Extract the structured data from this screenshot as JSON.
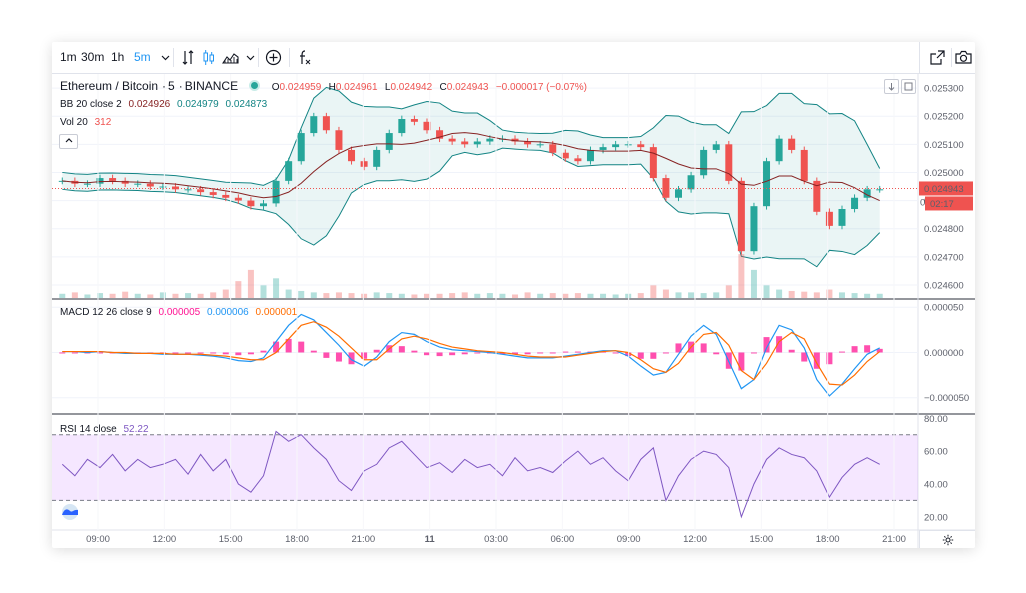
{
  "toolbar": {
    "intervals": [
      "1m",
      "30m",
      "1h",
      "5m"
    ],
    "active_interval": "5m",
    "icons": [
      "chevron-down-icon",
      "compare-icon",
      "candles-icon",
      "area-chart-icon",
      "chevron-down-icon",
      "add-circle-icon",
      "indicators-fx-icon"
    ],
    "right_icons": [
      "popout-icon",
      "camera-icon"
    ]
  },
  "symbol": {
    "name": "Ethereum / Bitcoin",
    "interval": "5",
    "exchange": "BINANCE",
    "open_label": "O",
    "open": "0.024959",
    "high_label": "H",
    "high": "0.024961",
    "low_label": "L",
    "low": "0.024942",
    "close_label": "C",
    "close": "0.024943",
    "change": "−0.000017 (−0.07%)"
  },
  "indicators": {
    "bb_label": "BB 20 close 2",
    "bb_values": [
      "0.024926",
      "0.024979",
      "0.024873"
    ],
    "vol_label": "Vol 20",
    "vol_value": "312",
    "macd_label": "MACD 12 26 close 9",
    "macd_values": [
      "0.000005",
      "0.000006",
      "0.000001"
    ],
    "rsi_label": "RSI 14 close",
    "rsi_value": "52.22"
  },
  "price_axis": {
    "ticks": [
      "0.025300",
      "0.025200",
      "0.025100",
      "0.025000",
      "0.024900",
      "0.024800",
      "0.024700",
      "0.024600"
    ],
    "current_price": "0.024943",
    "countdown": "02:17",
    "partial_tick": "0."
  },
  "macd_axis": {
    "ticks": [
      "0.000050",
      "0.000000",
      "−0.000050"
    ]
  },
  "rsi_axis": {
    "ticks": [
      "80.00",
      "60.00",
      "40.00",
      "20.00"
    ]
  },
  "time_axis": {
    "labels": [
      "09:00",
      "12:00",
      "15:00",
      "18:00",
      "21:00",
      "11",
      "03:00",
      "06:00",
      "09:00",
      "12:00",
      "15:00",
      "18:00",
      "21:00"
    ]
  },
  "colors": {
    "up": "#26a69a",
    "down": "#ef5350",
    "bb_basis": "#872323",
    "bb_band": "#138484",
    "bb_fill": "#198c8c",
    "macd_line": "#2196f3",
    "signal_line": "#ff6d00",
    "hist": "#ff1493",
    "rsi_line": "#7e57c2",
    "rsi_band": "#9915ff",
    "current_price": "#ef5350"
  },
  "chart_data": {
    "type": "candlestick",
    "series": [
      {
        "name": "ETHBTC (price)",
        "values": [
          0.02497,
          0.02496,
          0.02496,
          0.02498,
          0.02497,
          0.02496,
          0.02496,
          0.02495,
          0.02495,
          0.02494,
          0.02494,
          0.02493,
          0.02492,
          0.02491,
          0.0249,
          0.02488,
          0.02489,
          0.02497,
          0.02504,
          0.02514,
          0.0252,
          0.02515,
          0.02508,
          0.02504,
          0.02502,
          0.02508,
          0.02514,
          0.02519,
          0.02518,
          0.02515,
          0.02512,
          0.02511,
          0.0251,
          0.02511,
          0.02512,
          0.02512,
          0.02511,
          0.0251,
          0.0251,
          0.02507,
          0.02505,
          0.02504,
          0.02508,
          0.02509,
          0.0251,
          0.0251,
          0.02509,
          0.02498,
          0.02491,
          0.02494,
          0.02499,
          0.02508,
          0.0251,
          0.02497,
          0.02472,
          0.02488,
          0.02504,
          0.02512,
          0.02508,
          0.02497,
          0.02486,
          0.02481,
          0.02487,
          0.02491,
          0.02494,
          0.02494
        ]
      },
      {
        "name": "Volume",
        "values": [
          30,
          40,
          25,
          35,
          30,
          45,
          30,
          25,
          40,
          30,
          35,
          30,
          40,
          60,
          120,
          200,
          90,
          140,
          60,
          50,
          40,
          35,
          40,
          35,
          30,
          40,
          35,
          30,
          25,
          30,
          30,
          35,
          40,
          30,
          35,
          30,
          25,
          40,
          30,
          35,
          30,
          35,
          30,
          30,
          25,
          30,
          35,
          90,
          60,
          40,
          40,
          35,
          40,
          90,
          312,
          200,
          90,
          60,
          50,
          45,
          40,
          60,
          40,
          35,
          30,
          30
        ]
      },
      {
        "name": "MACD",
        "values": [
          1e-06,
          1e-06,
          0.0,
          1e-06,
          0.0,
          -1e-06,
          -1e-06,
          -1e-06,
          -2e-06,
          -2e-06,
          -2e-06,
          -3e-06,
          -4e-06,
          -6e-06,
          -9e-06,
          -1e-05,
          -6e-06,
          1.2e-05,
          3e-05,
          4.2e-05,
          3.6e-05,
          2.2e-05,
          8e-06,
          -8e-06,
          -1.5e-05,
          -5e-06,
          1.2e-05,
          2.2e-05,
          2e-05,
          1.2e-05,
          6e-06,
          3e-06,
          2e-06,
          1e-06,
          0.0,
          -2e-06,
          -4e-06,
          -6e-06,
          -6e-06,
          -6e-06,
          -4e-06,
          -2e-06,
          0.0,
          2e-06,
          2e-06,
          -4e-06,
          -1.5e-05,
          -2.5e-05,
          -2.2e-05,
          -2e-06,
          1.8e-05,
          3e-05,
          2e-05,
          -1e-05,
          -4e-05,
          -3e-05,
          5e-06,
          3e-05,
          2.5e-05,
          5e-06,
          -3e-05,
          -4.8e-05,
          -3.5e-05,
          -1.8e-05,
          -2e-06,
          5e-06
        ]
      },
      {
        "name": "Signal",
        "values": [
          1e-06,
          1e-06,
          1e-06,
          1e-06,
          0.0,
          0.0,
          -1e-06,
          -1e-06,
          -1e-06,
          -2e-06,
          -2e-06,
          -2e-06,
          -3e-06,
          -4e-06,
          -6e-06,
          -8e-06,
          -8e-06,
          0.0,
          1.5e-05,
          3e-05,
          3.4e-05,
          2.8e-05,
          1.8e-05,
          5e-06,
          -8e-06,
          -8e-06,
          4e-06,
          1.5e-05,
          1.8e-05,
          1.5e-05,
          1e-05,
          6e-06,
          4e-06,
          2e-06,
          1e-06,
          0.0,
          -2e-06,
          -4e-06,
          -5e-06,
          -5e-06,
          -5e-06,
          -3e-06,
          -1e-06,
          1e-06,
          2e-06,
          0.0,
          -8e-06,
          -1.8e-05,
          -2.2e-05,
          -1.2e-05,
          6e-06,
          2e-05,
          2.2e-05,
          8e-06,
          -2e-05,
          -3e-05,
          -1.2e-05,
          1.2e-05,
          2.2e-05,
          1.5e-05,
          -1.2e-05,
          -3.5e-05,
          -3.6e-05,
          -2.5e-05,
          -1e-05,
          1e-06
        ]
      },
      {
        "name": "RSI",
        "values": [
          52,
          45,
          55,
          50,
          58,
          48,
          55,
          50,
          52,
          55,
          46,
          58,
          48,
          55,
          40,
          35,
          45,
          72,
          66,
          70,
          62,
          55,
          42,
          36,
          48,
          52,
          62,
          66,
          58,
          50,
          53,
          47,
          55,
          50,
          52,
          45,
          56,
          48,
          50,
          47,
          54,
          60,
          52,
          56,
          48,
          42,
          55,
          62,
          30,
          45,
          55,
          60,
          58,
          50,
          20,
          40,
          55,
          62,
          58,
          56,
          48,
          32,
          44,
          52,
          56,
          52
        ]
      }
    ],
    "price_ylim": [
      0.02455,
      0.02535
    ],
    "macd_ylim": [
      -6.8e-05,
      5.8e-05
    ],
    "rsi_ylim": [
      12,
      82
    ],
    "rsi_bands": [
      70,
      30
    ]
  }
}
